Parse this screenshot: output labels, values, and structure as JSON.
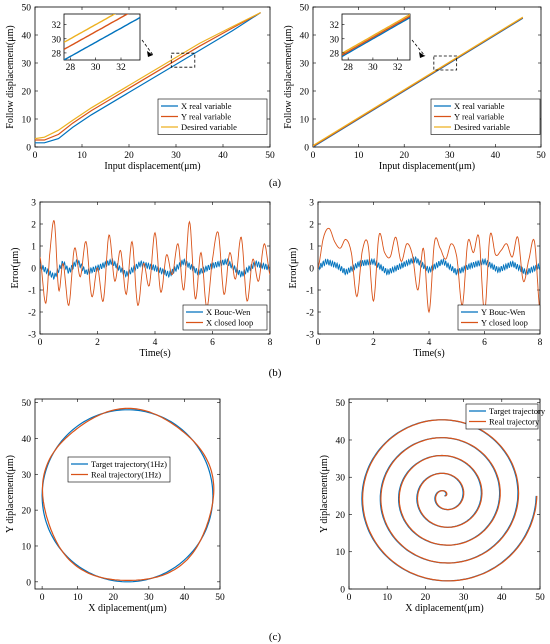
{
  "figure": {
    "panel_labels": [
      "(a)",
      "(b)",
      "(c)"
    ]
  },
  "chart_data": [
    {
      "id": "a_left",
      "type": "line",
      "xlabel": "Input displacement(μm)",
      "ylabel": "Follow displacement(μm)",
      "xlim": [
        0,
        50
      ],
      "ylim": [
        0,
        50
      ],
      "xticks": [
        0,
        10,
        20,
        30,
        40,
        50
      ],
      "yticks": [
        0,
        10,
        20,
        30,
        40,
        50
      ],
      "legend_position": "lower-right",
      "series": [
        {
          "name": "X real variable",
          "color": "#0072BD",
          "x": [
            0,
            2,
            5,
            8,
            12,
            20,
            28,
            35,
            42,
            48
          ],
          "y": [
            1.5,
            1.5,
            3,
            7,
            11.5,
            19.5,
            27.5,
            34.5,
            41.5,
            48
          ]
        },
        {
          "name": "Y real variable",
          "color": "#D95319",
          "x": [
            0,
            2,
            5,
            8,
            12,
            20,
            28,
            35,
            42,
            48
          ],
          "y": [
            2.5,
            2.5,
            4.5,
            8.5,
            13,
            21,
            29,
            36,
            42.5,
            48
          ]
        },
        {
          "name": "Desired variable",
          "color": "#EDB120",
          "x": [
            0,
            2,
            5,
            8,
            12,
            20,
            28,
            35,
            42,
            48
          ],
          "y": [
            3,
            3.5,
            6,
            9.5,
            14,
            22,
            30,
            37,
            43,
            48
          ]
        }
      ],
      "inset": {
        "xlim": [
          27.5,
          33.5
        ],
        "ylim": [
          27,
          33.5
        ],
        "xticks": [
          28,
          30,
          32
        ],
        "yticks": [
          28,
          30,
          32
        ]
      }
    },
    {
      "id": "a_right",
      "type": "line",
      "xlabel": "Input displacement(μm)",
      "ylabel": "Follow displacement(μm)",
      "xlim": [
        0,
        50
      ],
      "ylim": [
        0,
        50
      ],
      "xticks": [
        0,
        10,
        20,
        30,
        40,
        50
      ],
      "yticks": [
        0,
        10,
        20,
        30,
        40,
        50
      ],
      "legend_position": "lower-right",
      "series": [
        {
          "name": "X real variable",
          "color": "#0072BD",
          "x": [
            0,
            46
          ],
          "y": [
            0,
            46
          ]
        },
        {
          "name": "Y real variable",
          "color": "#D95319",
          "x": [
            0,
            46
          ],
          "y": [
            0.2,
            46.2
          ]
        },
        {
          "name": "Desired variable",
          "color": "#EDB120",
          "x": [
            0,
            46
          ],
          "y": [
            0.5,
            46.4
          ]
        }
      ],
      "inset": {
        "xlim": [
          27.5,
          33
        ],
        "ylim": [
          27,
          33.5
        ],
        "xticks": [
          28,
          30,
          32
        ],
        "yticks": [
          28,
          30,
          32
        ]
      }
    },
    {
      "id": "b_left",
      "type": "line",
      "xlabel": "Time(s)",
      "ylabel": "Error(μm)",
      "xlim": [
        0,
        8
      ],
      "ylim": [
        -3,
        3
      ],
      "xticks": [
        0,
        2,
        4,
        6,
        8
      ],
      "yticks": [
        -3,
        -2,
        -1,
        0,
        1,
        2,
        3
      ],
      "legend_position": "lower-right",
      "series": [
        {
          "name": "X Bouc-Wen",
          "color": "#0072BD",
          "t": [
            0,
            0.2,
            0.5,
            0.8,
            1.0,
            1.3,
            1.6,
            2.0,
            2.5,
            3.0,
            3.5,
            4.0,
            4.5,
            5.0,
            5.5,
            6.0,
            6.5,
            7.0,
            7.5,
            8.0
          ],
          "y": [
            0.1,
            -0.1,
            -0.4,
            0.25,
            -0.15,
            0.3,
            -0.2,
            0.0,
            0.3,
            -0.3,
            0.2,
            0.0,
            -0.3,
            0.3,
            -0.2,
            0.1,
            0.3,
            -0.3,
            0.2,
            0.0
          ]
        },
        {
          "name": "X closed loop",
          "color": "#D95319",
          "t": [
            0,
            0.2,
            0.35,
            0.5,
            0.65,
            0.8,
            1.0,
            1.2,
            1.4,
            1.6,
            1.8,
            2.0,
            2.2,
            2.4,
            2.6,
            2.8,
            3.0,
            3.2,
            3.4,
            3.6,
            3.8,
            4.0,
            4.2,
            4.4,
            4.6,
            4.8,
            5.0,
            5.2,
            5.4,
            5.6,
            5.8,
            6.0,
            6.2,
            6.4,
            6.6,
            6.8,
            7.0,
            7.2,
            7.4,
            7.6,
            7.8,
            8.0
          ],
          "y": [
            0.5,
            -1.6,
            0.8,
            2.1,
            -1.0,
            0.2,
            -1.7,
            0.9,
            -0.4,
            1.2,
            -1.3,
            0.0,
            -1.5,
            1.5,
            -0.6,
            0.8,
            -1.2,
            1.2,
            -1.7,
            0.2,
            -0.8,
            1.6,
            -1.1,
            0.6,
            -0.3,
            1.1,
            -1.0,
            2.1,
            -1.4,
            0.7,
            -1.8,
            0.4,
            1.6,
            -1.2,
            0.7,
            -0.5,
            1.4,
            -1.5,
            0.4,
            -0.6,
            1.1,
            -0.3
          ]
        }
      ]
    },
    {
      "id": "b_right",
      "type": "line",
      "xlabel": "Time(s)",
      "ylabel": "Error(μm)",
      "xlim": [
        0,
        8
      ],
      "ylim": [
        -3,
        3
      ],
      "xticks": [
        0,
        2,
        4,
        6,
        8
      ],
      "yticks": [
        -3,
        -2,
        -1,
        0,
        1,
        2,
        3
      ],
      "legend_position": "lower-right",
      "series": [
        {
          "name": "Y Bouc-Wen",
          "color": "#0072BD",
          "t": [
            0,
            0.3,
            0.7,
            1.0,
            1.5,
            2.0,
            2.5,
            3.0,
            3.5,
            4.0,
            4.5,
            5.0,
            5.5,
            6.0,
            6.5,
            7.0,
            7.5,
            8.0
          ],
          "y": [
            0.0,
            0.3,
            0.1,
            -0.2,
            0.2,
            0.3,
            -0.2,
            0.1,
            0.4,
            -0.1,
            0.3,
            -0.2,
            0.1,
            0.3,
            -0.1,
            0.2,
            -0.2,
            0.1
          ]
        },
        {
          "name": "Y closed loop",
          "color": "#D95319",
          "t": [
            0,
            0.2,
            0.4,
            0.6,
            0.8,
            1.0,
            1.2,
            1.4,
            1.6,
            1.8,
            2.0,
            2.2,
            2.4,
            2.6,
            2.8,
            3.0,
            3.2,
            3.4,
            3.6,
            3.8,
            4.0,
            4.2,
            4.4,
            4.6,
            4.8,
            5.0,
            5.2,
            5.4,
            5.6,
            5.8,
            6.0,
            6.2,
            6.4,
            6.6,
            6.8,
            7.0,
            7.2,
            7.4,
            7.6,
            7.8,
            8.0
          ],
          "y": [
            0.0,
            1.4,
            1.8,
            1.2,
            0.9,
            1.3,
            0.7,
            -1.3,
            0.8,
            1.1,
            -1.5,
            1.5,
            0.7,
            0.5,
            1.4,
            0.3,
            1.1,
            0.6,
            -1.0,
            0.9,
            -2.0,
            1.2,
            0.9,
            0.4,
            1.1,
            0.5,
            -1.7,
            1.2,
            0.7,
            1.4,
            -2.0,
            1.5,
            0.6,
            0.8,
            1.1,
            0.5,
            1.4,
            -0.6,
            0.4,
            1.2,
            -2.0
          ]
        }
      ]
    },
    {
      "id": "c_left",
      "type": "line",
      "xlabel": "X diplacement(μm)",
      "ylabel": "Y diplacement(μm)",
      "xlim": [
        -2,
        50
      ],
      "ylim": [
        -2,
        51
      ],
      "xticks": [
        0,
        10,
        20,
        30,
        40,
        50
      ],
      "yticks": [
        0,
        10,
        20,
        30,
        40,
        50
      ],
      "legend_position": "top-center",
      "shape": {
        "kind": "circle",
        "center": [
          24,
          24
        ],
        "radius": 24
      },
      "series": [
        {
          "name": "Target trajectory(1Hz)",
          "color": "#0072BD"
        },
        {
          "name": "Real trajectory(1Hz)",
          "color": "#D95319"
        }
      ]
    },
    {
      "id": "c_right",
      "type": "line",
      "xlabel": "X diplacement(μm)",
      "ylabel": "Y diplacement(μm)",
      "xlim": [
        0,
        50
      ],
      "ylim": [
        0,
        51
      ],
      "xticks": [
        0,
        10,
        20,
        30,
        40,
        50
      ],
      "yticks": [
        0,
        10,
        20,
        30,
        40,
        50
      ],
      "legend_position": "top-right",
      "shape": {
        "kind": "spiral",
        "center": [
          25,
          25
        ],
        "turns": 5,
        "max_radius": 24
      },
      "series": [
        {
          "name": "Target trajectory",
          "color": "#0072BD"
        },
        {
          "name": "Real trajectory",
          "color": "#D95319"
        }
      ]
    }
  ]
}
